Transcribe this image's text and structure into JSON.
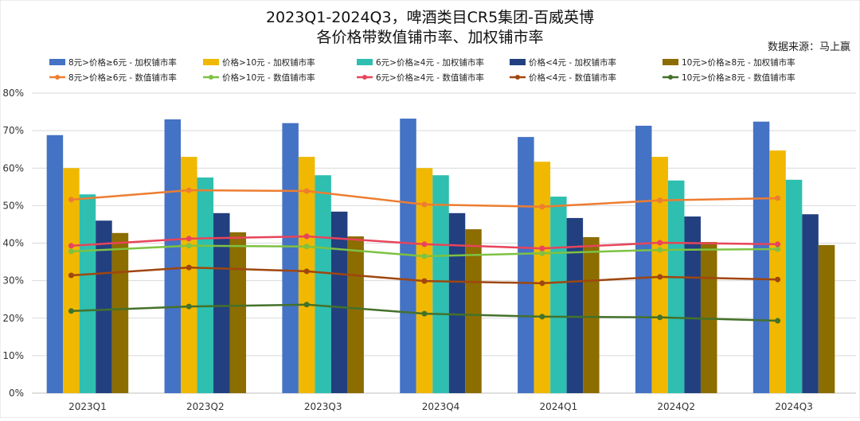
{
  "chart_data": {
    "type": "bar",
    "title": "2023Q1-2024Q3，啤酒类目CR5集团-百威英博",
    "subtitle": "各价格带数值铺市率、加权铺市率",
    "source": "数据来源：马上赢",
    "categories": [
      "2023Q1",
      "2023Q2",
      "2023Q3",
      "2023Q4",
      "2024Q1",
      "2024Q2",
      "2024Q3"
    ],
    "ylim": [
      0,
      80
    ],
    "yticks": [
      "0%",
      "10%",
      "20%",
      "30%",
      "40%",
      "50%",
      "60%",
      "70%",
      "80%"
    ],
    "grid": true,
    "legend_position": "top",
    "bar_series": [
      {
        "name": "8元>价格≥6元 - 加权铺市率",
        "color": "#4472C4",
        "values": [
          68.8,
          73.0,
          72.0,
          73.2,
          68.3,
          71.3,
          72.4
        ]
      },
      {
        "name": "价格>10元 - 加权铺市率",
        "color": "#F0B800",
        "values": [
          60.0,
          63.0,
          63.0,
          60.0,
          61.7,
          63.0,
          64.7
        ]
      },
      {
        "name": "6元>价格≥4元 - 加权铺市率",
        "color": "#2EBFB0",
        "values": [
          53.0,
          57.5,
          58.1,
          58.1,
          52.4,
          56.7,
          56.9
        ]
      },
      {
        "name": "价格<4元 - 加权铺市率",
        "color": "#22407F",
        "values": [
          46.0,
          48.0,
          48.4,
          48.0,
          46.7,
          47.1,
          47.7
        ]
      },
      {
        "name": "10元>价格≥8元 - 加权铺市率",
        "color": "#8C6D00",
        "values": [
          42.7,
          42.9,
          41.8,
          43.7,
          41.6,
          40.3,
          39.5
        ]
      }
    ],
    "line_series": [
      {
        "name": "8元>价格≥6元 - 数值铺市率",
        "color": "#ED7D31",
        "values": [
          51.6,
          54.1,
          53.9,
          50.3,
          49.7,
          51.4,
          52.0
        ]
      },
      {
        "name": "价格>10元 - 数值铺市率",
        "color": "#7DC242",
        "values": [
          37.8,
          39.3,
          39.1,
          36.5,
          37.3,
          38.2,
          38.4
        ]
      },
      {
        "name": "6元>价格≥4元 - 数值铺市率",
        "color": "#E8445A",
        "values": [
          39.3,
          41.2,
          41.8,
          39.7,
          38.6,
          40.1,
          39.7
        ]
      },
      {
        "name": "价格<4元 - 数值铺市率",
        "color": "#A0460F",
        "values": [
          31.4,
          33.5,
          32.5,
          29.9,
          29.3,
          31.0,
          30.3
        ]
      },
      {
        "name": "10元>价格≥8元 - 数值铺市率",
        "color": "#44712A",
        "values": [
          21.9,
          23.1,
          23.6,
          21.2,
          20.4,
          20.2,
          19.3
        ]
      }
    ]
  }
}
